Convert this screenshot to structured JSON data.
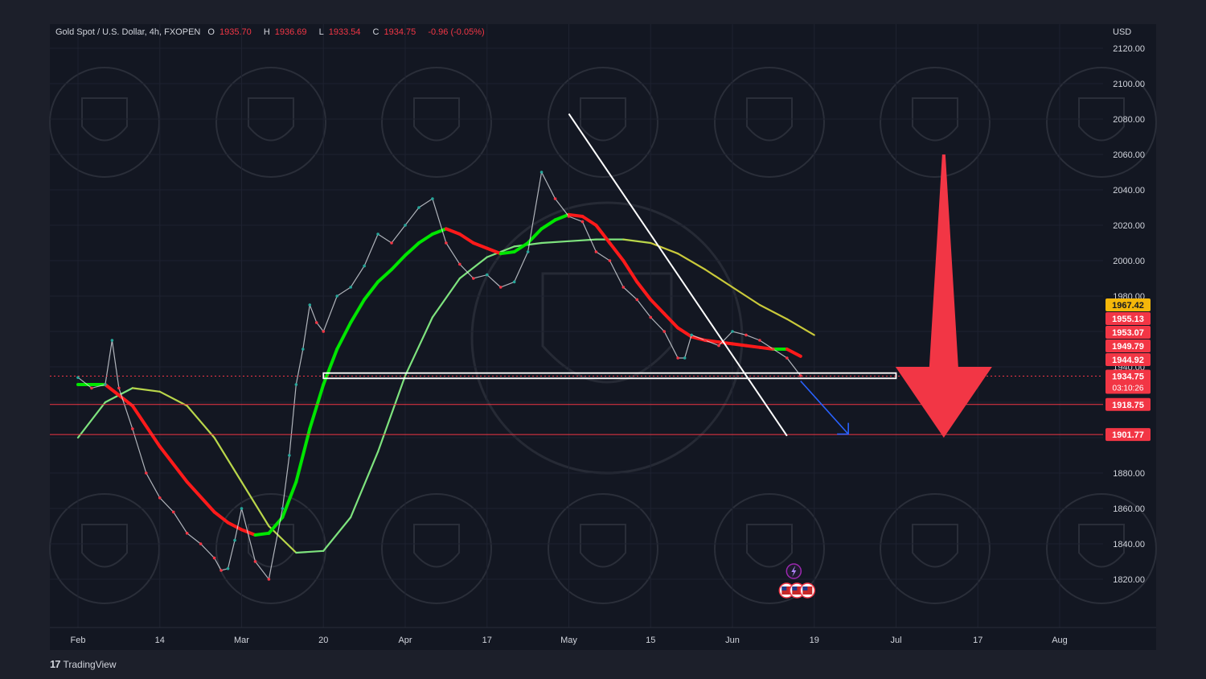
{
  "header": {
    "symbol": "Gold Spot / U.S. Dollar, 4h, FXOPEN",
    "open_label": "O",
    "open": "1935.70",
    "high_label": "H",
    "high": "1936.69",
    "low_label": "L",
    "low": "1933.54",
    "close_label": "C",
    "close": "1934.75",
    "change": "-0.96 (-0.05%)"
  },
  "currency": "USD",
  "brand": {
    "icon": "tradingview-logo-icon",
    "label": "TradingView"
  },
  "colors": {
    "background": "#1c1f2a",
    "plot_background": "#131722",
    "bull": "#26a69a",
    "bear": "#f23645",
    "ema_fast": "#00e600",
    "ema_fast_bear": "#ff1a1a",
    "sma_slow_bull": "#7ee37e",
    "sma_slow_mid": "#c9c93a",
    "arrow": "#f23645",
    "projection": "#2962ff",
    "support": "#ffffff"
  },
  "chart_data": {
    "type": "line",
    "ylim": [
      1810,
      2130
    ],
    "y_ticks": [
      1820,
      1840,
      1860,
      1880,
      1900,
      1920,
      1940,
      1960,
      1980,
      2000,
      2020,
      2040,
      2060,
      2080,
      2100,
      2120
    ],
    "y_tick_labels": [
      "1820.00",
      "1840.00",
      "1860.00",
      "1880.00",
      "1900.00",
      "1920.00",
      "1940.00",
      "1960.00",
      "1980.00",
      "2000.00",
      "2020.00",
      "2040.00",
      "2060.00",
      "2080.00",
      "2100.00",
      "2120.00"
    ],
    "x_tick_labels": [
      "Feb",
      "14",
      "Mar",
      "20",
      "Apr",
      "17",
      "May",
      "15",
      "Jun",
      "19",
      "Jul",
      "17",
      "Aug"
    ],
    "x_tick_index": [
      0,
      12,
      24,
      36,
      48,
      60,
      72,
      84,
      96,
      108,
      120,
      132,
      144
    ],
    "x_range": [
      0,
      144
    ],
    "series": [
      {
        "role": "price",
        "x": [
          0,
          2,
          4,
          5,
          6,
          8,
          10,
          12,
          14,
          16,
          18,
          20,
          21,
          22,
          23,
          24,
          26,
          28,
          30,
          31,
          32,
          33,
          34,
          35,
          36,
          38,
          40,
          42,
          44,
          46,
          48,
          50,
          52,
          54,
          56,
          58,
          60,
          62,
          64,
          66,
          68,
          70,
          72,
          74,
          76,
          78,
          80,
          82,
          84,
          86,
          88,
          89,
          90,
          92,
          94,
          96,
          98,
          100,
          102,
          104,
          106
        ],
        "values": [
          1934,
          1928,
          1930,
          1955,
          1928,
          1905,
          1880,
          1866,
          1858,
          1846,
          1840,
          1832,
          1825,
          1826,
          1842,
          1860,
          1830,
          1820,
          1860,
          1890,
          1930,
          1950,
          1975,
          1965,
          1960,
          1980,
          1985,
          1997,
          2015,
          2010,
          2020,
          2030,
          2035,
          2010,
          1998,
          1990,
          1992,
          1985,
          1988,
          2005,
          2050,
          2035,
          2025,
          2022,
          2005,
          2000,
          1985,
          1978,
          1968,
          1960,
          1945,
          1945,
          1958,
          1955,
          1952,
          1960,
          1958,
          1955,
          1950,
          1945,
          1935
        ]
      },
      {
        "role": "ema-fast",
        "x": [
          0,
          4,
          8,
          12,
          16,
          20,
          22,
          24,
          26,
          28,
          30,
          32,
          34,
          36,
          38,
          40,
          42,
          44,
          46,
          48,
          50,
          52,
          54,
          56,
          58,
          60,
          62,
          64,
          66,
          68,
          70,
          72,
          74,
          76,
          78,
          80,
          82,
          84,
          86,
          88,
          90,
          92,
          94,
          96,
          98,
          100,
          102,
          104,
          106
        ],
        "values": [
          1930,
          1930,
          1918,
          1895,
          1875,
          1858,
          1852,
          1848,
          1845,
          1846,
          1855,
          1875,
          1905,
          1930,
          1950,
          1965,
          1978,
          1988,
          1995,
          2003,
          2010,
          2015,
          2018,
          2015,
          2010,
          2007,
          2004,
          2005,
          2010,
          2018,
          2023,
          2026,
          2025,
          2020,
          2010,
          2000,
          1988,
          1978,
          1970,
          1962,
          1957,
          1955,
          1954,
          1953,
          1952,
          1951,
          1950,
          1950,
          1946
        ]
      },
      {
        "role": "sma-slow",
        "x": [
          0,
          4,
          8,
          12,
          16,
          20,
          24,
          28,
          32,
          36,
          40,
          44,
          48,
          52,
          56,
          60,
          64,
          68,
          72,
          76,
          80,
          84,
          88,
          92,
          96,
          100,
          104,
          108
        ],
        "values": [
          1900,
          1920,
          1928,
          1926,
          1918,
          1900,
          1875,
          1850,
          1835,
          1836,
          1855,
          1892,
          1935,
          1968,
          1990,
          2002,
          2008,
          2010,
          2011,
          2012,
          2012,
          2010,
          2004,
          1995,
          1985,
          1975,
          1967,
          1958
        ]
      }
    ],
    "levels": [
      {
        "price": 1934.75,
        "label": "1934.75",
        "countdown": "03:10:26",
        "color": "#f23645"
      },
      {
        "price": 1918.75,
        "label": "1918.75",
        "color": "#f23645"
      },
      {
        "price": 1901.77,
        "label": "1901.77",
        "color": "#f23645"
      }
    ],
    "price_tags": [
      {
        "price": 1967.42,
        "label": "1967.42",
        "color": "#f5b70a"
      },
      {
        "price": 1955.13,
        "label": "1955.13",
        "color": "#f23645"
      },
      {
        "price": 1953.07,
        "label": "1953.07",
        "color": "#f23645"
      },
      {
        "price": 1949.79,
        "label": "1949.79",
        "color": "#f23645"
      },
      {
        "price": 1944.92,
        "label": "1944.92",
        "color": "#f23645"
      }
    ],
    "support_zone": [
      1933.5,
      1936.5
    ],
    "support_zone_x": [
      36,
      120
    ],
    "trendline": {
      "from": [
        72,
        2083
      ],
      "to": [
        104,
        1901
      ]
    },
    "projection_arrow": {
      "from": [
        106,
        1932
      ],
      "to": [
        113,
        1902
      ]
    },
    "big_arrow": {
      "x": 127,
      "top": 2060,
      "bottom": 1900
    },
    "events": [
      {
        "icon": "lightning-icon",
        "x": 105
      },
      {
        "icon": "us-flag-icon",
        "x": 105
      }
    ]
  }
}
